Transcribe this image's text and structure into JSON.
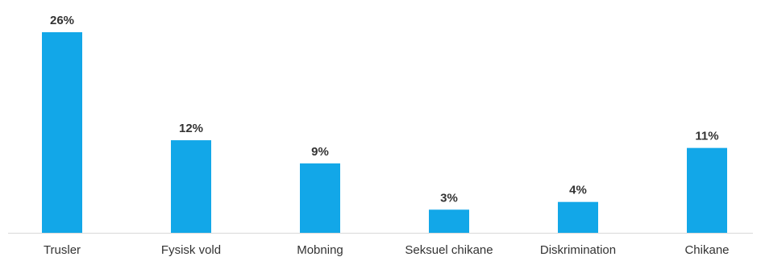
{
  "chart_data": {
    "type": "bar",
    "categories": [
      "Trusler",
      "Fysisk vold",
      "Mobning",
      "Seksuel chikane",
      "Diskrimination",
      "Chikane"
    ],
    "values": [
      26,
      12,
      9,
      3,
      4,
      11
    ],
    "data_labels": [
      "26%",
      "12%",
      "9%",
      "3%",
      "4%",
      "11%"
    ],
    "title": "",
    "xlabel": "",
    "ylabel": "",
    "ylim": [
      0,
      26
    ],
    "grid": false,
    "legend": "none",
    "colors": {
      "bar": "#12a7e8",
      "axis": "#d9d9d9",
      "text": "#333333"
    }
  }
}
